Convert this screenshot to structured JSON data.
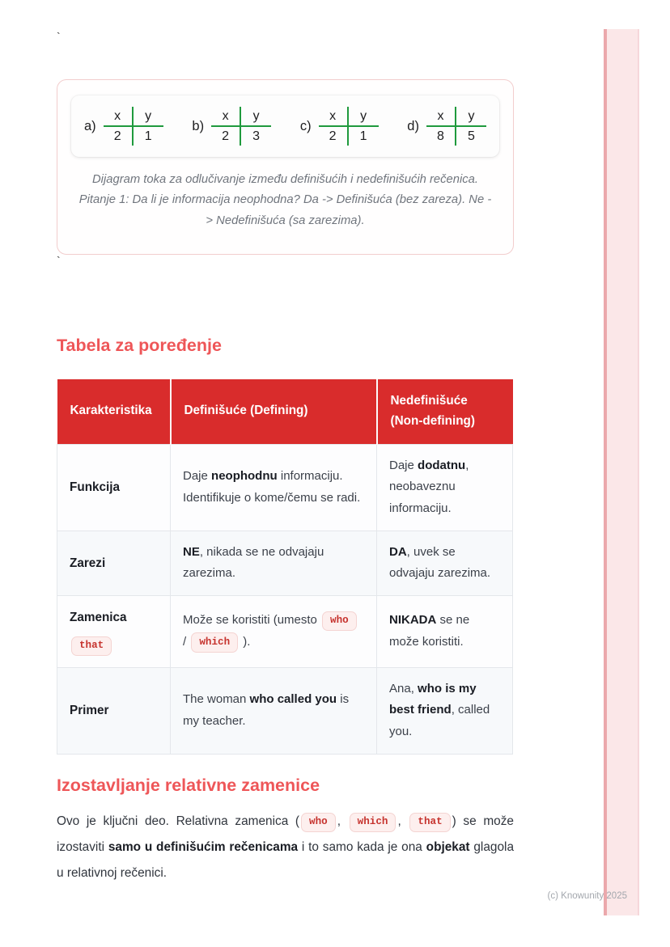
{
  "page": {
    "stray_mark_top": "`",
    "stray_mark_middle": "`",
    "footer_note": "(c) Knowunity 2025"
  },
  "colors": {
    "table_header_red": "#d92c2c",
    "heading_red": "#ee5658",
    "mini_table_green": "#1f9a3d",
    "chip_text_red": "#c6332e",
    "chip_background": "#fdefee",
    "side_bar_pink": "#fbe7e8",
    "side_bar_edge_pink": "#eba8ac"
  },
  "figure_card": {
    "mini_tables": [
      {
        "label": "a)",
        "headers": [
          "x",
          "y"
        ],
        "values": [
          "2",
          "1"
        ]
      },
      {
        "label": "b)",
        "headers": [
          "x",
          "y"
        ],
        "values": [
          "2",
          "3"
        ]
      },
      {
        "label": "c)",
        "headers": [
          "x",
          "y"
        ],
        "values": [
          "2",
          "1"
        ]
      },
      {
        "label": "d)",
        "headers": [
          "x",
          "y"
        ],
        "values": [
          "8",
          "5"
        ]
      }
    ],
    "caption": "Dijagram toka za odlučivanje između definišućih i nedefinišućih rečenica. Pitanje 1: Da li je informacija neophodna? Da -> Definišuća (bez zareza). Ne -> Nedefinišuća (sa zarezima)."
  },
  "comparison_section": {
    "heading": "Tabela za poređenje",
    "table": {
      "headers": [
        "Karakteristika",
        "Definišuće (Defining)",
        "Nedefinišuće (Non-defining)"
      ],
      "rows": [
        {
          "feature": [
            {
              "t": "Funkcija",
              "b": true
            }
          ],
          "defining": [
            {
              "t": "Daje "
            },
            {
              "t": "neophodnu",
              "b": true
            },
            {
              "t": " informaciju. Identifikuje o kome/čemu se radi."
            }
          ],
          "non_defining": [
            {
              "t": "Daje "
            },
            {
              "t": "dodatnu",
              "b": true
            },
            {
              "t": ", neobaveznu informaciju."
            }
          ]
        },
        {
          "feature": [
            {
              "t": "Zarezi",
              "b": true
            }
          ],
          "defining": [
            {
              "t": "NE",
              "b": true
            },
            {
              "t": ", nikada se ne odvajaju zarezima."
            }
          ],
          "non_defining": [
            {
              "t": "DA",
              "b": true
            },
            {
              "t": ", uvek se odvajaju zarezima."
            }
          ]
        },
        {
          "feature": [
            {
              "t": "Zamenica",
              "b": true
            },
            {
              "br": true
            },
            {
              "t": "that",
              "chip": true
            }
          ],
          "defining": [
            {
              "t": "Može se koristiti (umesto "
            },
            {
              "t": "who",
              "chip": true
            },
            {
              "t": " / "
            },
            {
              "t": "which",
              "chip": true
            },
            {
              "t": " )."
            }
          ],
          "non_defining": [
            {
              "t": "NIKADA",
              "b": true
            },
            {
              "t": " se ne može koristiti."
            }
          ]
        },
        {
          "feature": [
            {
              "t": "Primer",
              "b": true
            }
          ],
          "defining": [
            {
              "t": "The woman "
            },
            {
              "t": "who called you",
              "b": true
            },
            {
              "t": " is my teacher."
            }
          ],
          "non_defining": [
            {
              "t": "Ana, "
            },
            {
              "t": "who is my best friend",
              "b": true
            },
            {
              "t": ", called you."
            }
          ]
        }
      ]
    }
  },
  "omission_section": {
    "heading": "Izostavljanje relativne zamenice",
    "paragraph": [
      {
        "t": "Ovo je ključni deo. Relativna zamenica ("
      },
      {
        "t": "who",
        "chip": true
      },
      {
        "t": ", "
      },
      {
        "t": "which",
        "chip": true
      },
      {
        "t": ", "
      },
      {
        "t": "that",
        "chip": true
      },
      {
        "t": ") se može izostaviti "
      },
      {
        "t": "samo u definišućim rečenicama",
        "b": true
      },
      {
        "t": " i to samo kada je ona "
      },
      {
        "t": "objekat",
        "b": true
      },
      {
        "t": " glagola u relativnoj rečenici."
      }
    ]
  }
}
